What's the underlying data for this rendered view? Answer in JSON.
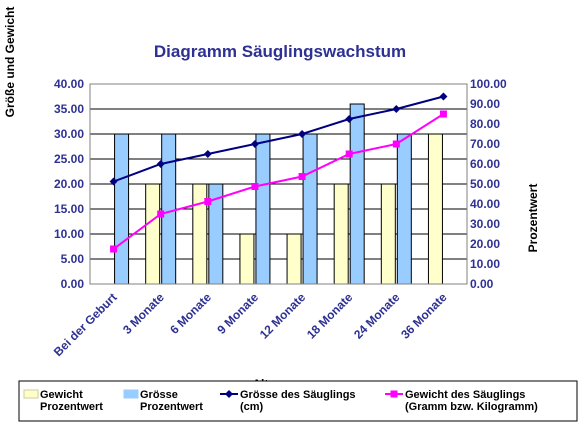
{
  "chart_data": {
    "type": "bar",
    "title": "Diagramm Säuglingswachstum",
    "xlabel": "Alter",
    "ylabel": "Größe und Gewicht",
    "y2label": "Prozentwert",
    "categories": [
      "Bei der Geburt",
      "3 Monate",
      "6 Monate",
      "9 Monate",
      "12 Monate",
      "18 Monate",
      "24 Monate",
      "36 Monate"
    ],
    "ylim": [
      0,
      40
    ],
    "y_ticks": [
      "0.00",
      "5.00",
      "10.00",
      "15.00",
      "20.00",
      "25.00",
      "30.00",
      "35.00",
      "40.00"
    ],
    "y2lim": [
      0,
      100
    ],
    "y2_ticks": [
      "0.00",
      "10.00",
      "20.00",
      "30.00",
      "40.00",
      "50.00",
      "60.00",
      "70.00",
      "80.00",
      "90.00",
      "100.00"
    ],
    "grid": true,
    "legend_position": "bottom",
    "series": [
      {
        "name": "Gewicht Prozentwert",
        "name_lines": [
          "Gewicht",
          "Prozentwert"
        ],
        "kind": "bar",
        "axis": "right",
        "color": "#ffffcc",
        "values": [
          0,
          50,
          50,
          25,
          25,
          50,
          50,
          75
        ]
      },
      {
        "name": "Grösse Prozentwert",
        "name_lines": [
          "Grösse",
          "Prozentwert"
        ],
        "kind": "bar",
        "axis": "right",
        "color": "#99ccff",
        "values": [
          75,
          75,
          50,
          75,
          75,
          90,
          75,
          0
        ]
      },
      {
        "name": "Grösse des Säuglings (cm)",
        "name_lines": [
          "Grösse des Säuglings",
          "(cm)"
        ],
        "kind": "line",
        "axis": "left",
        "color": "#000080",
        "marker": "diamond",
        "values": [
          20.5,
          24,
          26,
          28,
          30,
          33,
          35,
          37.5
        ]
      },
      {
        "name": "Gewicht des Säuglings (Gramm bzw. Kilogramm)",
        "name_lines": [
          "Gewicht des Säuglings",
          "(Gramm bzw. Kilogramm)"
        ],
        "kind": "line",
        "axis": "left",
        "color": "#ff00ff",
        "marker": "square",
        "values": [
          7,
          14,
          16.5,
          19.5,
          21.5,
          26,
          28,
          34
        ]
      }
    ]
  }
}
